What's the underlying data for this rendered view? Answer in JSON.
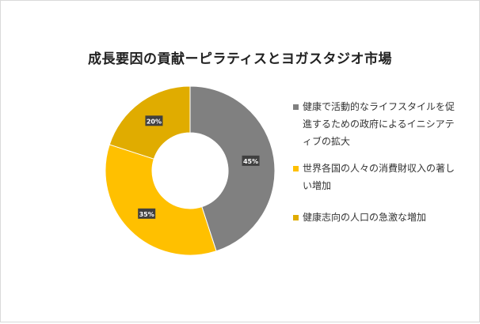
{
  "chart_data": {
    "type": "pie",
    "subtype": "doughnut",
    "title": "成長要因の貢献ーピラティスとヨガスタジオ市場",
    "series": [
      {
        "label": "健康で活動的なライフスタイルを促進するための政府によるイニシアティブの拡大",
        "value": 45,
        "display": "45%",
        "color": "#808080"
      },
      {
        "label": "世界各国の人々の消費財収入の著しい増加",
        "value": 35,
        "display": "35%",
        "color": "#FFC000"
      },
      {
        "label": "健康志向の人口の急激な増加",
        "value": 20,
        "display": "20%",
        "color": "#E0AC00"
      }
    ],
    "legend_position": "right",
    "data_label_color": "#404040"
  }
}
